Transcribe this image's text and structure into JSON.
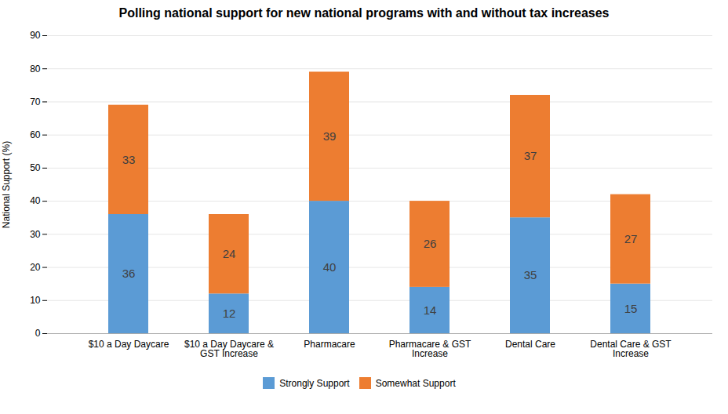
{
  "chart_data": {
    "type": "bar",
    "stacked": true,
    "title": "Polling national support for new national programs with and without tax increases",
    "ylabel": "National Support (%)",
    "categories": [
      "$10 a Day Daycare",
      "$10 a Day Daycare &\nGST Increase",
      "Pharmacare",
      "Pharmacare & GST\nIncrease",
      "Dental Care",
      "Dental Care & GST\nIncrease"
    ],
    "series": [
      {
        "name": "Strongly Support",
        "color": "#5B9BD5",
        "values": [
          36,
          12,
          40,
          14,
          35,
          15
        ]
      },
      {
        "name": "Somewhat Support",
        "color": "#ED7D31",
        "values": [
          33,
          24,
          39,
          26,
          37,
          27
        ]
      }
    ],
    "ylim": [
      0,
      90
    ],
    "yticks": [
      0,
      10,
      20,
      30,
      40,
      50,
      60,
      70,
      80,
      90
    ],
    "grid": true,
    "data_labels": true,
    "legend": "bottom"
  }
}
